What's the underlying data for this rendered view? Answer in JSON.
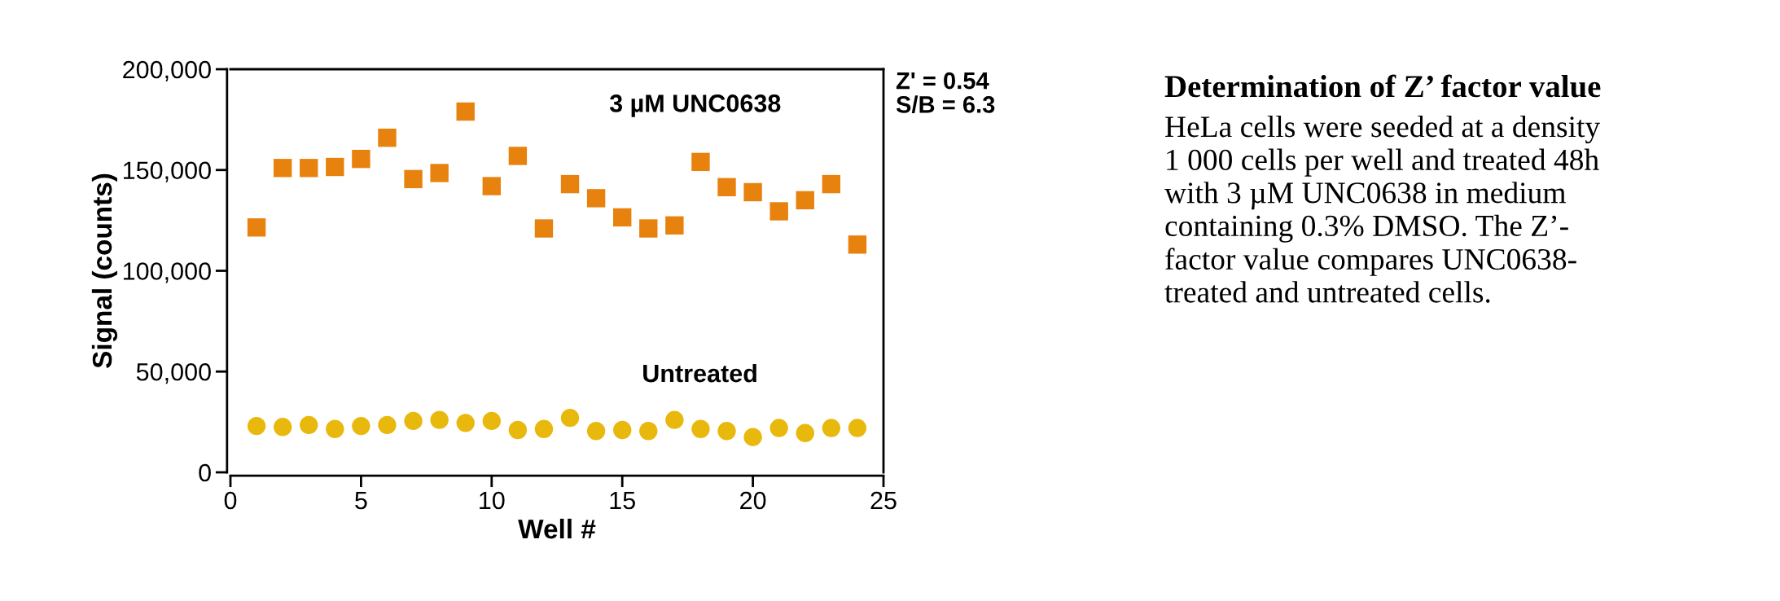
{
  "chart_data": {
    "type": "scatter",
    "xlabel": "Well #",
    "ylabel": "Signal (counts)",
    "x": [
      1,
      2,
      3,
      4,
      5,
      6,
      7,
      8,
      9,
      10,
      11,
      12,
      13,
      14,
      15,
      16,
      17,
      18,
      19,
      20,
      21,
      22,
      23,
      24
    ],
    "series": [
      {
        "name": "3 µM UNC0638",
        "color": "#e8820f",
        "marker": "square",
        "values": [
          121500,
          151000,
          151000,
          151500,
          155500,
          166000,
          145500,
          148500,
          179000,
          142000,
          157000,
          121000,
          143000,
          136000,
          126500,
          121000,
          122500,
          154000,
          141500,
          139000,
          129500,
          135000,
          143000,
          113000
        ]
      },
      {
        "name": "Untreated",
        "color": "#e8b90c",
        "marker": "circle",
        "values": [
          23000,
          22500,
          23500,
          21500,
          23000,
          23500,
          25500,
          26000,
          24500,
          25500,
          21000,
          21500,
          27000,
          20500,
          21000,
          20500,
          26000,
          21500,
          20500,
          17500,
          22000,
          19500,
          22000,
          22000
        ]
      }
    ],
    "xlim": [
      0,
      25
    ],
    "xticks": [
      0,
      5,
      10,
      15,
      20,
      25
    ],
    "ylim": [
      0,
      200000
    ],
    "yticks": [
      {
        "value": 0,
        "label": "0"
      },
      {
        "value": 50000,
        "label": "50,000"
      },
      {
        "value": 100000,
        "label": "100,000"
      },
      {
        "value": 150000,
        "label": "150,000"
      },
      {
        "value": 200000,
        "label": "200,000"
      }
    ],
    "grid": false,
    "legend": false,
    "annotations": [
      "Z' = 0.54\nS/B = 6.3",
      "Determination of Z’ factor value",
      "HeLa cells were seeded at a density\n1 000 cells per well and treated 48h\nwith 3 µM UNC0638 in medium\ncontaining 0.3% DMSO. The Z’-\nfactor value compares UNC0638-\ntreated and untreated cells."
    ]
  }
}
